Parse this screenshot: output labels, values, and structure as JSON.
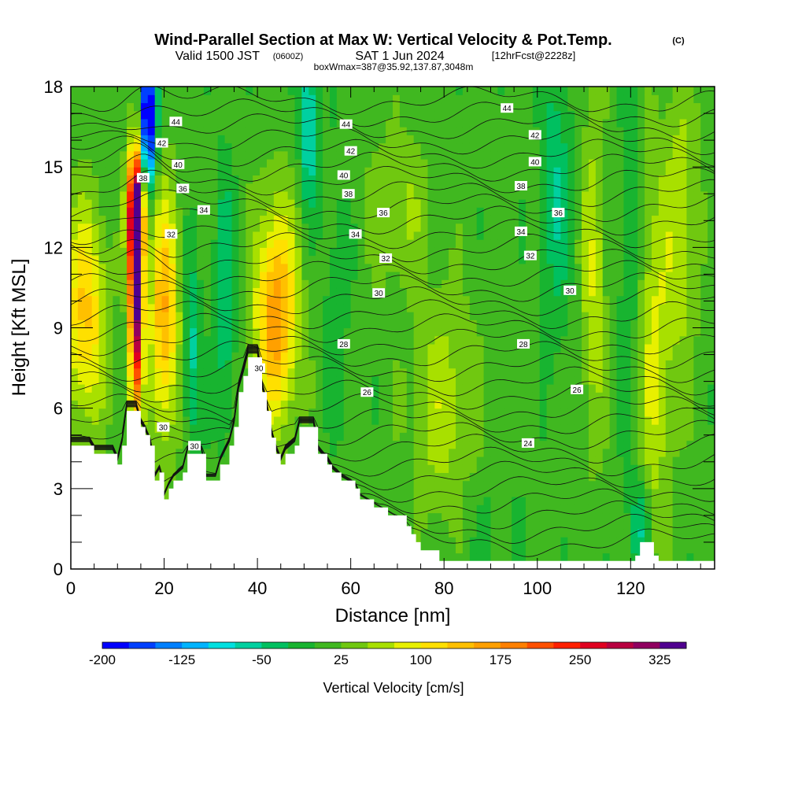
{
  "header": {
    "title": "Wind-Parallel Section at Max W: Vertical Velocity & Pot.Temp.",
    "copyright": "(C)",
    "valid_main": "Valid 1500 JST",
    "valid_utc": "(0600Z)",
    "valid_date": "SAT 1 Jun 2024",
    "forecast": "[12hrFcst@2228z]",
    "box_info": "boxWmax=387@35.92,137.87,3048m"
  },
  "chart_data": {
    "type": "heatmap",
    "xlabel": "Distance [nm]",
    "ylabel": "Height [Kft MSL]",
    "xlim": [
      0,
      138
    ],
    "ylim": [
      0,
      18
    ],
    "xticks": [
      0,
      20,
      40,
      60,
      80,
      100,
      120
    ],
    "yticks": [
      0,
      3,
      6,
      9,
      12,
      15,
      18
    ],
    "colorbar": {
      "label": "Vertical Velocity [cm/s]",
      "min": -200,
      "max": 350,
      "step": 25,
      "tick_values": [
        -200,
        -125,
        -50,
        25,
        100,
        175,
        250,
        325
      ],
      "tick_labels": [
        "-200",
        "-125",
        "-50",
        "25",
        "100",
        "175",
        "250",
        "325"
      ],
      "colors": [
        "#0000ff",
        "#0040ff",
        "#0080ff",
        "#00b4ff",
        "#00e0e0",
        "#00d0a0",
        "#00c060",
        "#18b430",
        "#40b820",
        "#70c810",
        "#a8e000",
        "#e8f000",
        "#ffe000",
        "#ffc000",
        "#ffa000",
        "#ff8000",
        "#ff5000",
        "#ff2000",
        "#e00020",
        "#b80040",
        "#900060",
        "#500090"
      ]
    },
    "background_velocity": 10,
    "velocity_features": [
      {
        "x": 14,
        "y": 10.5,
        "sx": 1.0,
        "sy": 3.2,
        "v": 340
      },
      {
        "x": 14,
        "y": 13.5,
        "sx": 1.4,
        "sy": 1.5,
        "v": 200
      },
      {
        "x": 16.5,
        "y": 16.8,
        "sx": 1.2,
        "sy": 1.8,
        "v": -260
      },
      {
        "x": 3,
        "y": 9.5,
        "sx": 3.2,
        "sy": 2.8,
        "v": 120
      },
      {
        "x": 20,
        "y": 9.5,
        "sx": 2.2,
        "sy": 3.2,
        "v": 140
      },
      {
        "x": 26,
        "y": 8.0,
        "sx": 1.3,
        "sy": 2.5,
        "v": -70
      },
      {
        "x": 33,
        "y": 10.0,
        "sx": 1.5,
        "sy": 3.5,
        "v": -60
      },
      {
        "x": 44,
        "y": 9.5,
        "sx": 3.2,
        "sy": 2.8,
        "v": 160
      },
      {
        "x": 51,
        "y": 16.5,
        "sx": 1.3,
        "sy": 2.0,
        "v": -100
      },
      {
        "x": 57,
        "y": 10.5,
        "sx": 2.0,
        "sy": 3.5,
        "v": -25
      },
      {
        "x": 80,
        "y": 6.0,
        "sx": 5.0,
        "sy": 3.0,
        "v": 55
      },
      {
        "x": 70,
        "y": 13.5,
        "sx": 4.5,
        "sy": 2.0,
        "v": 45
      },
      {
        "x": 104,
        "y": 14.0,
        "sx": 2.2,
        "sy": 3.5,
        "v": -60
      },
      {
        "x": 112,
        "y": 11.0,
        "sx": 1.8,
        "sy": 4.5,
        "v": 65
      },
      {
        "x": 120,
        "y": 10.5,
        "sx": 1.8,
        "sy": 5.0,
        "v": -35
      },
      {
        "x": 125,
        "y": 8.0,
        "sx": 2.8,
        "sy": 5.0,
        "v": 70
      },
      {
        "x": 122,
        "y": 1.5,
        "sx": 1.5,
        "sy": 1.4,
        "v": -70
      },
      {
        "x": 131,
        "y": 13.0,
        "sx": 2.5,
        "sy": 4.0,
        "v": 55
      },
      {
        "x": 90,
        "y": 2.0,
        "sx": 6.0,
        "sy": 1.5,
        "v": -15
      }
    ],
    "terrain": [
      [
        0,
        4.6
      ],
      [
        2,
        4.6
      ],
      [
        4,
        4.6
      ],
      [
        5,
        4.3
      ],
      [
        8,
        4.3
      ],
      [
        9,
        4.3
      ],
      [
        10,
        3.9
      ],
      [
        11,
        4.6
      ],
      [
        12,
        5.9
      ],
      [
        14,
        5.9
      ],
      [
        15,
        5.3
      ],
      [
        16,
        5.0
      ],
      [
        17,
        4.6
      ],
      [
        18,
        3.3
      ],
      [
        19,
        3.6
      ],
      [
        20,
        2.6
      ],
      [
        21,
        3.0
      ],
      [
        22,
        3.3
      ],
      [
        24,
        3.6
      ],
      [
        25,
        4.3
      ],
      [
        28,
        4.3
      ],
      [
        29,
        3.3
      ],
      [
        31,
        3.3
      ],
      [
        32,
        3.9
      ],
      [
        34,
        4.6
      ],
      [
        35,
        5.3
      ],
      [
        36,
        6.6
      ],
      [
        37,
        7.2
      ],
      [
        38,
        7.9
      ],
      [
        40,
        7.9
      ],
      [
        41,
        6.6
      ],
      [
        42,
        5.9
      ],
      [
        43,
        4.9
      ],
      [
        44,
        4.3
      ],
      [
        45,
        3.9
      ],
      [
        46,
        4.3
      ],
      [
        48,
        4.6
      ],
      [
        49,
        5.3
      ],
      [
        52,
        5.3
      ],
      [
        53,
        4.3
      ],
      [
        55,
        3.9
      ],
      [
        56,
        3.6
      ],
      [
        58,
        3.3
      ],
      [
        61,
        3.0
      ],
      [
        62,
        2.6
      ],
      [
        65,
        2.3
      ],
      [
        68,
        2.0
      ],
      [
        72,
        1.6
      ],
      [
        73,
        1.3
      ],
      [
        74,
        1.0
      ],
      [
        75,
        0.7
      ],
      [
        78,
        0.7
      ],
      [
        79,
        0.3
      ],
      [
        80,
        0.3
      ],
      [
        120,
        0.3
      ],
      [
        121,
        0.5
      ],
      [
        122,
        1.0
      ],
      [
        124,
        1.0
      ],
      [
        125,
        0.5
      ],
      [
        126,
        0.3
      ],
      [
        138,
        0.3
      ]
    ],
    "contour_labels": [
      {
        "text": "44",
        "x": 22.5,
        "y": 16.7
      },
      {
        "text": "42",
        "x": 19.5,
        "y": 15.9
      },
      {
        "text": "40",
        "x": 23.0,
        "y": 15.1
      },
      {
        "text": "38",
        "x": 15.5,
        "y": 14.6
      },
      {
        "text": "36",
        "x": 24.0,
        "y": 14.2
      },
      {
        "text": "34",
        "x": 28.5,
        "y": 13.4
      },
      {
        "text": "32",
        "x": 21.5,
        "y": 12.5
      },
      {
        "text": "30",
        "x": 19.8,
        "y": 5.3
      },
      {
        "text": "30",
        "x": 26.5,
        "y": 4.6
      },
      {
        "text": "30",
        "x": 40.3,
        "y": 7.5
      },
      {
        "text": "44",
        "x": 59.0,
        "y": 16.6
      },
      {
        "text": "42",
        "x": 60.0,
        "y": 15.6
      },
      {
        "text": "40",
        "x": 58.5,
        "y": 14.7
      },
      {
        "text": "38",
        "x": 59.5,
        "y": 14.0
      },
      {
        "text": "36",
        "x": 67.0,
        "y": 13.3
      },
      {
        "text": "34",
        "x": 61.0,
        "y": 12.5
      },
      {
        "text": "32",
        "x": 67.5,
        "y": 11.6
      },
      {
        "text": "30",
        "x": 66.0,
        "y": 10.3
      },
      {
        "text": "28",
        "x": 58.5,
        "y": 8.4
      },
      {
        "text": "26",
        "x": 63.5,
        "y": 6.6
      },
      {
        "text": "44",
        "x": 93.5,
        "y": 17.2
      },
      {
        "text": "42",
        "x": 99.5,
        "y": 16.2
      },
      {
        "text": "40",
        "x": 99.5,
        "y": 15.2
      },
      {
        "text": "38",
        "x": 96.5,
        "y": 14.3
      },
      {
        "text": "36",
        "x": 104.5,
        "y": 13.3
      },
      {
        "text": "34",
        "x": 96.5,
        "y": 12.6
      },
      {
        "text": "32",
        "x": 98.5,
        "y": 11.7
      },
      {
        "text": "30",
        "x": 107.0,
        "y": 10.4
      },
      {
        "text": "28",
        "x": 97.0,
        "y": 8.4
      },
      {
        "text": "26",
        "x": 108.5,
        "y": 6.7
      },
      {
        "text": "24",
        "x": 98.0,
        "y": 4.7
      }
    ]
  }
}
